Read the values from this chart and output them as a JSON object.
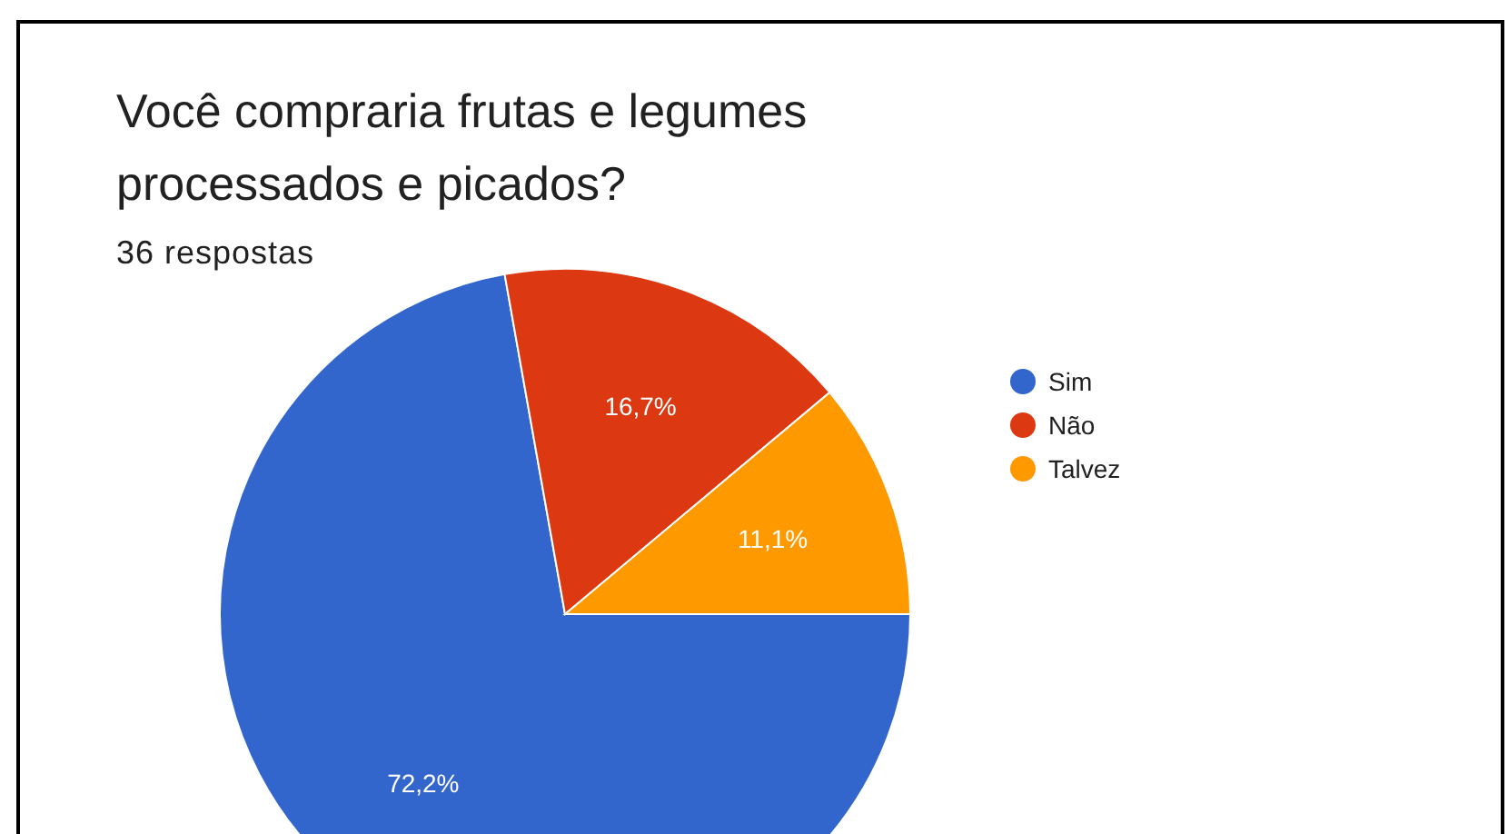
{
  "chart_data": {
    "type": "pie",
    "title": "Você compraria frutas e legumes processados e picados?",
    "subtitle": "36 respostas",
    "categories": [
      "Sim",
      "Não",
      "Talvez"
    ],
    "values": [
      72.2,
      16.7,
      11.1
    ],
    "colors": [
      "#3366cc",
      "#dc3912",
      "#ff9900"
    ],
    "value_labels": [
      "72,2%",
      "16,7%",
      "11,1%"
    ],
    "legend": "right"
  }
}
